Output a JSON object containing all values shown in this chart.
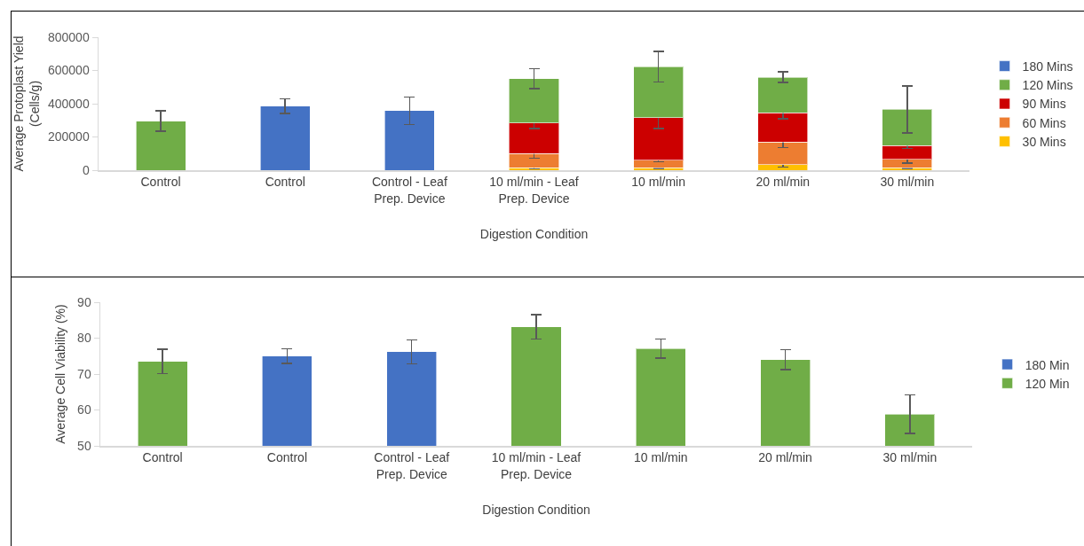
{
  "chart_data": [
    {
      "type": "bar",
      "stacked": true,
      "xlabel": "Digestion Condition",
      "ylabel": "Average Protoplast Yield (Cells/g)",
      "categories": [
        "Control",
        "Control",
        "Control - Leaf Prep. Device",
        "10 ml/min - Leaf Prep. Device",
        "10 ml/min",
        "20 ml/min",
        "30 ml/min"
      ],
      "series": [
        {
          "name": "30 Mins",
          "color": "#ffc000",
          "values": [
            null,
            null,
            null,
            15000,
            15000,
            34000,
            15000
          ],
          "errors": [
            null,
            null,
            null,
            8000,
            5000,
            16000,
            3000
          ]
        },
        {
          "name": "60 Mins",
          "color": "#ed7d31",
          "values": [
            null,
            null,
            null,
            85000,
            44000,
            135000,
            50000
          ],
          "errors": [
            null,
            null,
            null,
            27000,
            7000,
            32000,
            23000
          ]
        },
        {
          "name": "90 Mins",
          "color": "#cc0000",
          "values": [
            null,
            null,
            null,
            185000,
            257000,
            176000,
            83000
          ],
          "errors": [
            null,
            null,
            null,
            35000,
            65000,
            36000,
            16000
          ]
        },
        {
          "name": "120 Mins",
          "color": "#70ad47",
          "values": [
            296000,
            null,
            null,
            265000,
            307000,
            214000,
            218000
          ],
          "errors": [
            62000,
            null,
            null,
            60000,
            93000,
            32000,
            141000
          ]
        },
        {
          "name": "180 Mins",
          "color": "#4472c4",
          "values": [
            null,
            385000,
            358000,
            null,
            null,
            null,
            null
          ],
          "errors": [
            null,
            44000,
            83000,
            null,
            null,
            null,
            null
          ]
        }
      ],
      "ylim": [
        0,
        800000
      ],
      "yticks": [
        0,
        200000,
        400000,
        600000,
        800000
      ],
      "grid": false,
      "legend": "right"
    },
    {
      "type": "bar",
      "stacked": true,
      "xlabel": "Digestion Condition",
      "ylabel": "Average Cell Viability (%)",
      "categories": [
        "Control",
        "Control",
        "Control - Leaf Prep. Device",
        "10 ml/min - Leaf Prep. Device",
        "10 ml/min",
        "20 ml/min",
        "30 ml/min"
      ],
      "series": [
        {
          "name": "120 Min",
          "color": "#70ad47",
          "values": [
            73.5,
            null,
            null,
            83.1,
            77.1,
            74.0,
            58.8
          ],
          "errors": [
            3.4,
            null,
            null,
            3.4,
            2.7,
            2.8,
            5.4
          ]
        },
        {
          "name": "180 Min",
          "color": "#4472c4",
          "values": [
            null,
            75.0,
            76.2,
            null,
            null,
            null,
            null
          ],
          "errors": [
            null,
            2.0,
            3.3,
            null,
            null,
            null,
            null
          ]
        }
      ],
      "ylim": [
        50,
        90
      ],
      "yticks": [
        50,
        60,
        70,
        80,
        90
      ],
      "grid": false,
      "legend": "right"
    }
  ]
}
